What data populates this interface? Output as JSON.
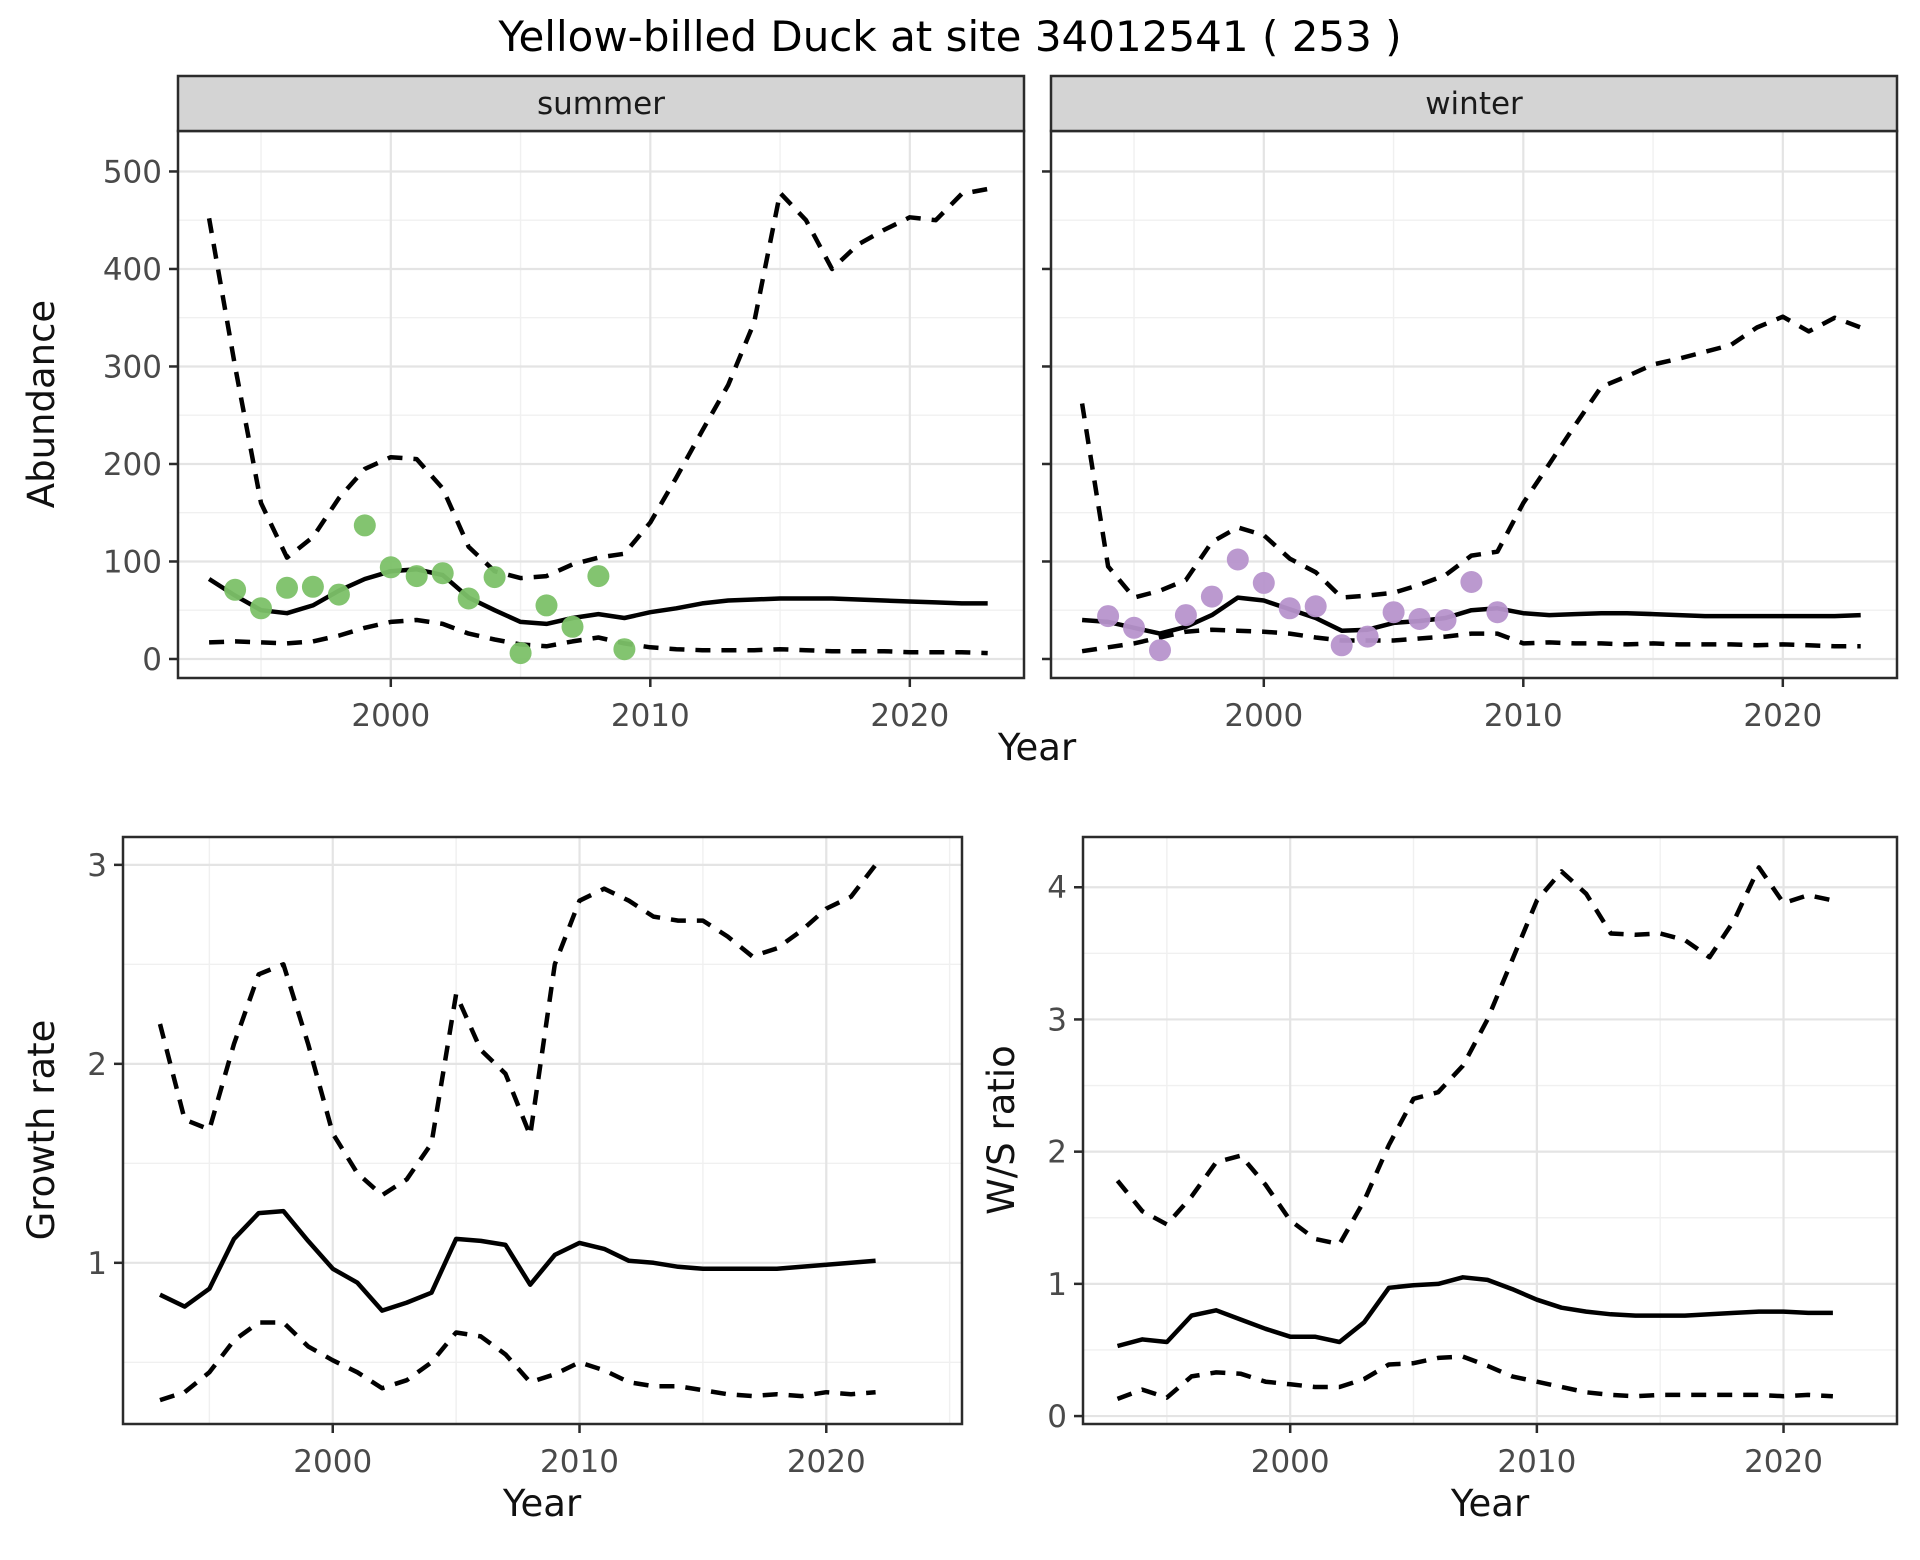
{
  "title": "Yellow-billed Duck at site 34012541 ( 253 )",
  "colors": {
    "line": "#000000",
    "grid_major": "#e4e4e4",
    "grid_minor": "#f0f0f0",
    "panel_border": "#2b2b2b",
    "strip_bg": "#d4d4d4",
    "tick_label": "#4a4a4a",
    "summer_points": "#7cc168",
    "winter_points": "#b794cc"
  },
  "chart_data": [
    {
      "id": "abundance-summer",
      "type": "line",
      "facet_label": "summer",
      "xlabel": "Year",
      "ylabel": "Abundance",
      "xlim": [
        1991.8,
        2024.4
      ],
      "ylim": [
        -19.5,
        541.5
      ],
      "xticks": [
        2000,
        2010,
        2020
      ],
      "yticks": [
        0,
        100,
        200,
        300,
        400,
        500
      ],
      "line_years": [
        1993,
        1994,
        1995,
        1996,
        1997,
        1998,
        1999,
        2000,
        2001,
        2002,
        2003,
        2004,
        2005,
        2006,
        2007,
        2008,
        2009,
        2010,
        2011,
        2012,
        2013,
        2014,
        2015,
        2016,
        2017,
        2018,
        2019,
        2020,
        2021,
        2022,
        2023
      ],
      "series": [
        {
          "name": "upper_ci",
          "dashed": true,
          "values": [
            452,
            300,
            160,
            104,
            125,
            165,
            195,
            207,
            205,
            175,
            115,
            90,
            83,
            85,
            97,
            104,
            108,
            140,
            186,
            234,
            281,
            345,
            478,
            450,
            400,
            425,
            440,
            453,
            450,
            477,
            482
          ]
        },
        {
          "name": "mean",
          "dashed": false,
          "values": [
            82,
            65,
            50,
            47,
            55,
            70,
            82,
            90,
            92,
            86,
            63,
            50,
            38,
            36,
            42,
            46,
            42,
            48,
            52,
            57,
            60,
            61,
            62,
            62,
            62,
            61,
            60,
            59,
            58,
            57,
            57
          ]
        },
        {
          "name": "lower_ci",
          "dashed": true,
          "values": [
            17,
            18,
            17,
            16,
            18,
            24,
            32,
            38,
            40,
            36,
            26,
            20,
            15,
            13,
            18,
            22,
            16,
            12,
            10,
            9,
            9,
            9,
            10,
            9,
            8,
            8,
            8,
            7,
            7,
            7,
            6
          ]
        }
      ],
      "points": {
        "name": "observed-counts-summer",
        "color": "#7cc168",
        "years": [
          1994,
          1995,
          1996,
          1997,
          1998,
          1999,
          2000,
          2001,
          2002,
          2003,
          2004,
          2005,
          2006,
          2007,
          2008,
          2009
        ],
        "values": [
          71,
          52,
          73,
          74,
          66,
          137,
          94,
          85,
          88,
          62,
          84,
          6,
          55,
          33,
          85,
          10
        ]
      }
    },
    {
      "id": "abundance-winter",
      "type": "line",
      "facet_label": "winter",
      "xlabel": "Year",
      "ylabel": "Abundance",
      "xlim": [
        1991.8,
        2024.4
      ],
      "ylim": [
        -19.5,
        541.5
      ],
      "xticks": [
        2000,
        2010,
        2020
      ],
      "yticks": [
        0,
        100,
        200,
        300,
        400,
        500
      ],
      "line_years": [
        1993,
        1994,
        1995,
        1996,
        1997,
        1998,
        1999,
        2000,
        2001,
        2002,
        2003,
        2004,
        2005,
        2006,
        2007,
        2008,
        2009,
        2010,
        2011,
        2012,
        2013,
        2014,
        2015,
        2016,
        2017,
        2018,
        2019,
        2020,
        2021,
        2022,
        2023
      ],
      "series": [
        {
          "name": "upper_ci",
          "dashed": true,
          "values": [
            262,
            95,
            63,
            70,
            81,
            120,
            135,
            127,
            103,
            89,
            63,
            65,
            68,
            76,
            86,
            106,
            110,
            160,
            200,
            240,
            279,
            290,
            302,
            308,
            315,
            322,
            340,
            351,
            336,
            350,
            340
          ]
        },
        {
          "name": "mean",
          "dashed": false,
          "values": [
            40,
            38,
            32,
            26,
            33,
            45,
            63,
            60,
            51,
            42,
            29,
            30,
            37,
            39,
            42,
            50,
            52,
            47,
            45,
            46,
            47,
            47,
            46,
            45,
            44,
            44,
            44,
            44,
            44,
            44,
            45
          ]
        },
        {
          "name": "lower_ci",
          "dashed": true,
          "values": [
            8,
            12,
            16,
            22,
            28,
            30,
            29,
            28,
            26,
            22,
            19,
            19,
            19,
            21,
            23,
            26,
            26,
            16,
            17,
            16,
            16,
            15,
            16,
            15,
            15,
            15,
            14,
            15,
            14,
            13,
            13
          ]
        }
      ],
      "points": {
        "name": "observed-counts-winter",
        "color": "#b794cc",
        "years": [
          1994,
          1995,
          1996,
          1997,
          1998,
          1999,
          2000,
          2001,
          2002,
          2003,
          2004,
          2005,
          2006,
          2007,
          2008,
          2009
        ],
        "values": [
          44,
          32,
          9,
          45,
          64,
          102,
          78,
          52,
          54,
          14,
          23,
          48,
          41,
          40,
          79,
          48
        ]
      }
    },
    {
      "id": "growth-rate",
      "type": "line",
      "facet_label": "",
      "xlabel": "Year",
      "ylabel": "Growth rate",
      "xlim": [
        1991.5,
        2025.5
      ],
      "ylim": [
        0.19,
        3.14
      ],
      "xticks": [
        2000,
        2010,
        2020
      ],
      "yticks": [
        1,
        2,
        3
      ],
      "line_years": [
        1993,
        1994,
        1995,
        1996,
        1997,
        1998,
        1999,
        2000,
        2001,
        2002,
        2003,
        2004,
        2005,
        2006,
        2007,
        2008,
        2009,
        2010,
        2011,
        2012,
        2013,
        2014,
        2015,
        2016,
        2017,
        2018,
        2019,
        2020,
        2021,
        2022
      ],
      "series": [
        {
          "name": "upper_ci",
          "dashed": true,
          "values": [
            2.2,
            1.72,
            1.67,
            2.1,
            2.45,
            2.5,
            2.1,
            1.65,
            1.45,
            1.34,
            1.42,
            1.6,
            2.35,
            2.07,
            1.95,
            1.64,
            2.5,
            2.82,
            2.88,
            2.82,
            2.74,
            2.72,
            2.72,
            2.64,
            2.54,
            2.58,
            2.67,
            2.78,
            2.84,
            3.0
          ]
        },
        {
          "name": "mean",
          "dashed": false,
          "values": [
            0.84,
            0.78,
            0.87,
            1.12,
            1.25,
            1.26,
            1.11,
            0.97,
            0.9,
            0.76,
            0.8,
            0.85,
            1.12,
            1.11,
            1.09,
            0.89,
            1.04,
            1.1,
            1.07,
            1.01,
            1.0,
            0.98,
            0.97,
            0.97,
            0.97,
            0.97,
            0.98,
            0.99,
            1.0,
            1.01
          ]
        },
        {
          "name": "lower_ci",
          "dashed": true,
          "values": [
            0.31,
            0.35,
            0.45,
            0.61,
            0.7,
            0.7,
            0.58,
            0.51,
            0.45,
            0.37,
            0.41,
            0.5,
            0.65,
            0.63,
            0.54,
            0.4,
            0.44,
            0.5,
            0.46,
            0.4,
            0.38,
            0.38,
            0.36,
            0.34,
            0.33,
            0.34,
            0.33,
            0.35,
            0.34,
            0.35
          ]
        }
      ]
    },
    {
      "id": "ws-ratio",
      "type": "line",
      "facet_label": "",
      "xlabel": "Year",
      "ylabel": "W/S ratio",
      "xlim": [
        1991.6,
        2024.6
      ],
      "ylim": [
        -0.06,
        4.38
      ],
      "xticks": [
        2000,
        2010,
        2020
      ],
      "yticks": [
        0,
        1,
        2,
        3,
        4
      ],
      "line_years": [
        1993,
        1994,
        1995,
        1996,
        1997,
        1998,
        1999,
        2000,
        2001,
        2002,
        2003,
        2004,
        2005,
        2006,
        2007,
        2008,
        2009,
        2010,
        2011,
        2012,
        2013,
        2014,
        2015,
        2016,
        2017,
        2018,
        2019,
        2020,
        2021,
        2022
      ],
      "series": [
        {
          "name": "upper_ci",
          "dashed": true,
          "values": [
            1.78,
            1.55,
            1.45,
            1.66,
            1.92,
            1.97,
            1.75,
            1.48,
            1.34,
            1.3,
            1.63,
            2.05,
            2.4,
            2.45,
            2.65,
            3.0,
            3.45,
            3.9,
            4.12,
            3.95,
            3.65,
            3.64,
            3.65,
            3.6,
            3.47,
            3.75,
            4.15,
            3.88,
            3.94,
            3.9
          ]
        },
        {
          "name": "mean",
          "dashed": false,
          "values": [
            0.53,
            0.58,
            0.56,
            0.76,
            0.8,
            0.73,
            0.66,
            0.6,
            0.6,
            0.56,
            0.71,
            0.97,
            0.99,
            1.0,
            1.05,
            1.03,
            0.96,
            0.88,
            0.82,
            0.79,
            0.77,
            0.76,
            0.76,
            0.76,
            0.77,
            0.78,
            0.79,
            0.79,
            0.78,
            0.78
          ]
        },
        {
          "name": "lower_ci",
          "dashed": true,
          "values": [
            0.13,
            0.2,
            0.14,
            0.3,
            0.33,
            0.32,
            0.26,
            0.24,
            0.22,
            0.22,
            0.28,
            0.39,
            0.4,
            0.44,
            0.45,
            0.38,
            0.3,
            0.26,
            0.22,
            0.18,
            0.16,
            0.15,
            0.16,
            0.16,
            0.16,
            0.16,
            0.16,
            0.15,
            0.16,
            0.15
          ]
        }
      ]
    }
  ]
}
